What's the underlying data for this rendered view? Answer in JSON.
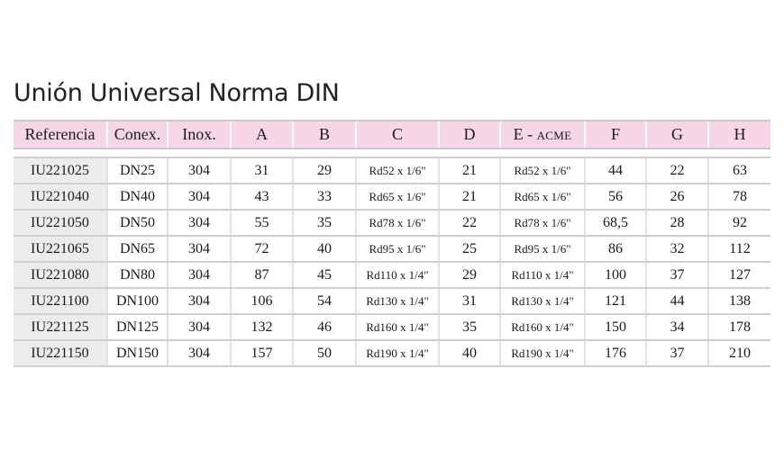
{
  "title": "Unión Universal Norma DIN",
  "table": {
    "headers": [
      {
        "main": "Referencia",
        "suffix": ""
      },
      {
        "main": "Conex.",
        "suffix": ""
      },
      {
        "main": "Inox.",
        "suffix": ""
      },
      {
        "main": "A",
        "suffix": ""
      },
      {
        "main": "B",
        "suffix": ""
      },
      {
        "main": "C",
        "suffix": ""
      },
      {
        "main": "D",
        "suffix": ""
      },
      {
        "main": "E - ",
        "suffix": "ACME"
      },
      {
        "main": "F",
        "suffix": ""
      },
      {
        "main": "G",
        "suffix": ""
      },
      {
        "main": "H",
        "suffix": ""
      }
    ],
    "rows": [
      [
        "IU221025",
        "DN25",
        "304",
        "31",
        "29",
        "Rd52 x 1/6\"",
        "21",
        "Rd52 x 1/6\"",
        "44",
        "22",
        "63"
      ],
      [
        "IU221040",
        "DN40",
        "304",
        "43",
        "33",
        "Rd65 x 1/6\"",
        "21",
        "Rd65 x 1/6\"",
        "56",
        "26",
        "78"
      ],
      [
        "IU221050",
        "DN50",
        "304",
        "55",
        "35",
        "Rd78 x 1/6\"",
        "22",
        "Rd78 x 1/6\"",
        "68,5",
        "28",
        "92"
      ],
      [
        "IU221065",
        "DN65",
        "304",
        "72",
        "40",
        "Rd95 x 1/6\"",
        "25",
        "Rd95 x 1/6\"",
        "86",
        "32",
        "112"
      ],
      [
        "IU221080",
        "DN80",
        "304",
        "87",
        "45",
        "Rd110 x 1/4\"",
        "29",
        "Rd110 x 1/4\"",
        "100",
        "37",
        "127"
      ],
      [
        "IU221100",
        "DN100",
        "304",
        "106",
        "54",
        "Rd130 x 1/4\"",
        "31",
        "Rd130 x 1/4\"",
        "121",
        "44",
        "138"
      ],
      [
        "IU221125",
        "DN125",
        "304",
        "132",
        "46",
        "Rd160 x 1/4\"",
        "35",
        "Rd160 x 1/4\"",
        "150",
        "34",
        "178"
      ],
      [
        "IU221150",
        "DN150",
        "304",
        "157",
        "50",
        "Rd190 x 1/4\"",
        "40",
        "Rd190 x 1/4\"",
        "176",
        "37",
        "210"
      ]
    ]
  },
  "colors": {
    "header_bg": "#f7d6e8",
    "reference_col_bg": "#ececec",
    "rule": "#cfcfcf"
  }
}
